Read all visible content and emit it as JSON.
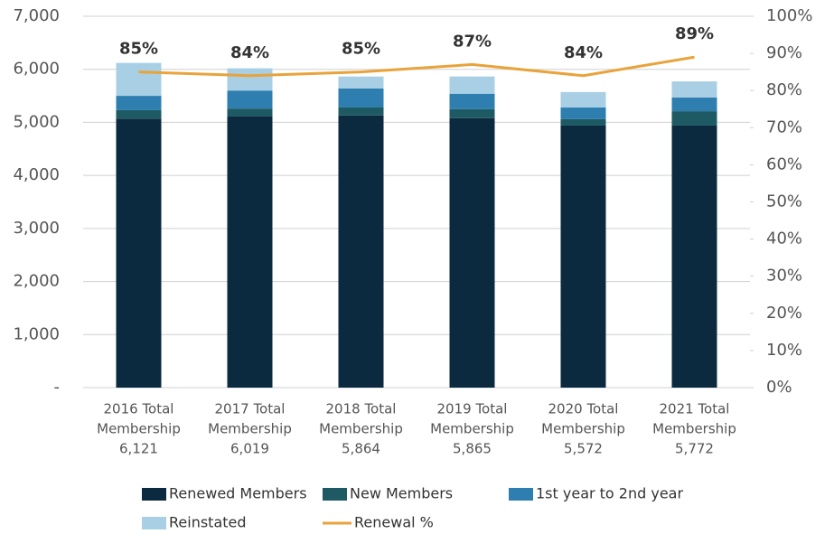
{
  "chart_data": {
    "type": "bar",
    "stacked": true,
    "categories": [
      [
        "2016 Total",
        "Membership",
        "6,121"
      ],
      [
        "2017 Total",
        "Membership",
        "6,019"
      ],
      [
        "2018 Total",
        "Membership",
        "5,864"
      ],
      [
        "2019 Total",
        "Membership",
        "5,865"
      ],
      [
        "2020 Total",
        "Membership",
        "5,572"
      ],
      [
        "2021 Total",
        "Membership",
        "5,772"
      ]
    ],
    "series": [
      {
        "name": "Renewed Members",
        "color": "#0b2a3f",
        "values": [
          5070,
          5110,
          5130,
          5080,
          4940,
          4940
        ]
      },
      {
        "name": "New Members",
        "color": "#1d5a63",
        "values": [
          160,
          150,
          150,
          170,
          120,
          270
        ]
      },
      {
        "name": "1st year to 2nd year",
        "color": "#2e7fb0",
        "values": [
          270,
          340,
          360,
          290,
          220,
          260
        ]
      },
      {
        "name": "Reinstated",
        "color": "#a9cfe4",
        "values": [
          621,
          419,
          224,
          325,
          292,
          302
        ]
      },
      {
        "name": "Renewal %",
        "color": "#e8a33a",
        "type": "line",
        "axis": "y2",
        "values": [
          85,
          84,
          85,
          87,
          84,
          89
        ],
        "value_labels": [
          "85%",
          "84%",
          "85%",
          "87%",
          "84%",
          "89%"
        ]
      }
    ],
    "ylim": [
      0,
      7000
    ],
    "yticks": [
      {
        "value": 0,
        "label": "-"
      },
      {
        "value": 1000,
        "label": "1,000"
      },
      {
        "value": 2000,
        "label": "2,000"
      },
      {
        "value": 3000,
        "label": "3,000"
      },
      {
        "value": 4000,
        "label": "4,000"
      },
      {
        "value": 5000,
        "label": "5,000"
      },
      {
        "value": 6000,
        "label": "6,000"
      },
      {
        "value": 7000,
        "label": "7,000"
      }
    ],
    "y2lim": [
      0,
      100
    ],
    "y2ticks": [
      {
        "value": 0,
        "label": "0%"
      },
      {
        "value": 10,
        "label": "10%"
      },
      {
        "value": 20,
        "label": "20%"
      },
      {
        "value": 30,
        "label": "30%"
      },
      {
        "value": 40,
        "label": "40%"
      },
      {
        "value": 50,
        "label": "50%"
      },
      {
        "value": 60,
        "label": "60%"
      },
      {
        "value": 70,
        "label": "70%"
      },
      {
        "value": 80,
        "label": "80%"
      },
      {
        "value": 90,
        "label": "90%"
      },
      {
        "value": 100,
        "label": "100%"
      }
    ],
    "grid": true,
    "legend": "bottom"
  }
}
